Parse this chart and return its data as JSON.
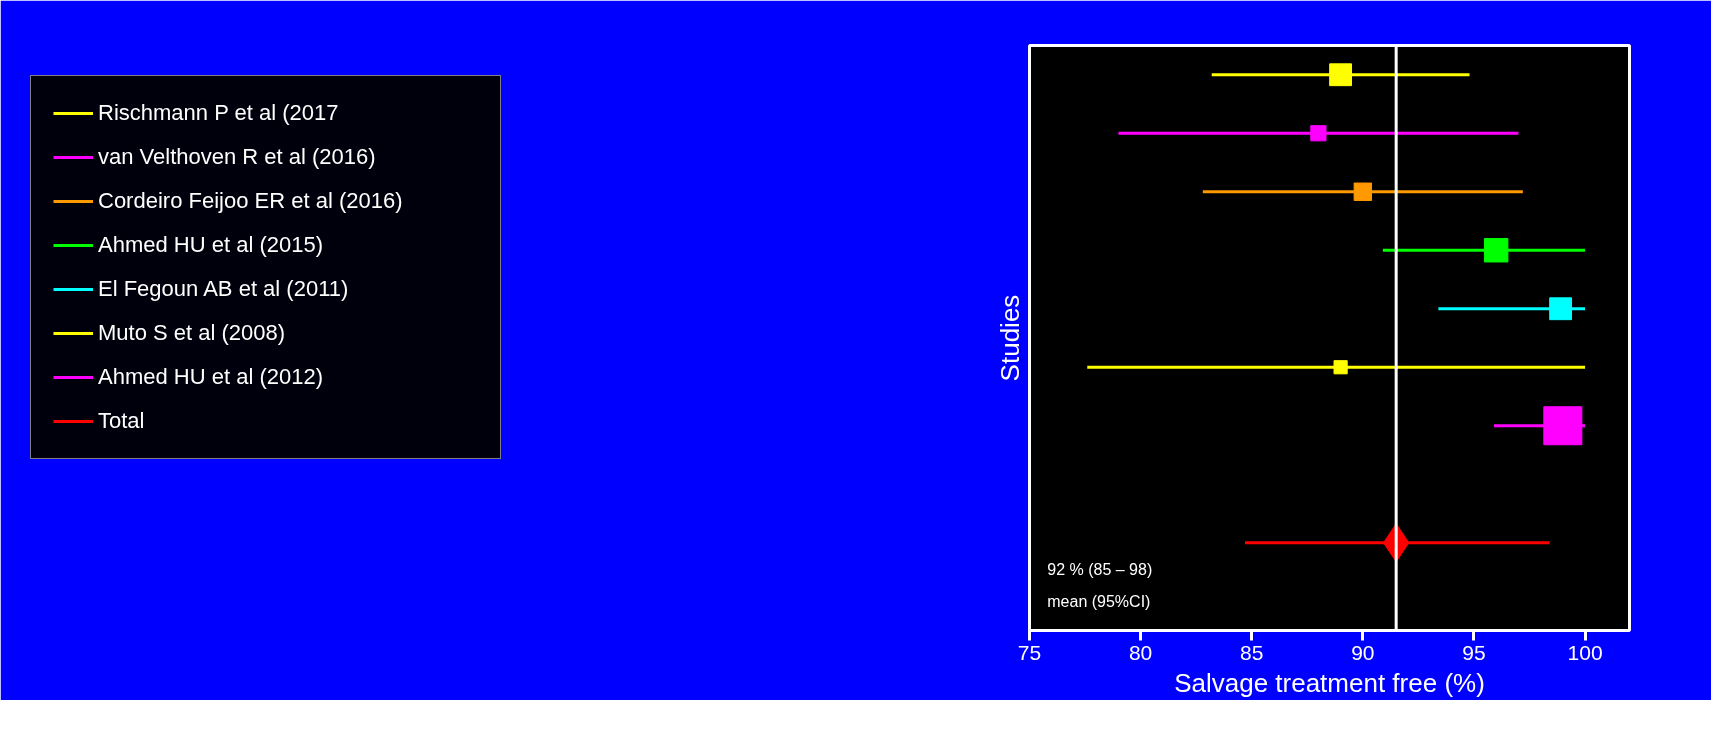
{
  "chart_data": {
    "type": "bubble",
    "orientation": "horizontal",
    "xlabel": "Salvage treatment free (%)",
    "ylabel": "Studies",
    "categories": [
      null,
      null,
      null,
      null,
      null,
      null,
      null,
      null,
      null,
      null
    ],
    "xlim": [
      75,
      102
    ],
    "xticks": [
      75,
      80,
      85,
      90,
      95,
      100
    ],
    "tick_labels": "x",
    "grid": false,
    "legend": "left",
    "marker": "square",
    "series": [
      {
        "name": "Rischmann P et al (2017",
        "color": "#ffff00",
        "values": [
          89.0,
          null,
          null,
          null,
          null,
          null,
          null,
          null,
          null,
          null
        ],
        "errors": [
          [
            83.2,
            94.8
          ],
          null,
          null,
          null,
          null,
          null,
          null,
          null,
          null,
          null
        ],
        "sizes": [
          0.33,
          null,
          null,
          null,
          null,
          null,
          null,
          null,
          null,
          null
        ]
      },
      {
        "name": "van Velthoven R et al (2016)",
        "color": "#ff00ff",
        "values": [
          null,
          88.0,
          null,
          null,
          null,
          null,
          null,
          null,
          null,
          null
        ],
        "errors": [
          null,
          [
            79.0,
            97.0
          ],
          null,
          null,
          null,
          null,
          null,
          null,
          null,
          null
        ],
        "sizes": [
          null,
          0.16,
          null,
          null,
          null,
          null,
          null,
          null,
          null,
          null
        ]
      },
      {
        "name": "Cordeiro Feijoo ER et al (2016)",
        "color": "#ff9900",
        "values": [
          null,
          null,
          90.0,
          null,
          null,
          null,
          null,
          null,
          null,
          null
        ],
        "errors": [
          null,
          null,
          [
            82.8,
            97.2
          ],
          null,
          null,
          null,
          null,
          null,
          null,
          null
        ],
        "sizes": [
          null,
          null,
          0.21,
          null,
          null,
          null,
          null,
          null,
          null,
          null
        ]
      },
      {
        "name": "Ahmed HU et al (2015)",
        "color": "#00ff00",
        "values": [
          null,
          null,
          null,
          96.0,
          null,
          null,
          null,
          null,
          null,
          null
        ],
        "errors": [
          null,
          null,
          null,
          [
            90.9,
            100.0
          ],
          null,
          null,
          null,
          null,
          null,
          null
        ],
        "sizes": [
          null,
          null,
          null,
          0.38,
          null,
          null,
          null,
          null,
          null,
          null
        ]
      },
      {
        "name": "El Fegoun AB et al (2011)",
        "color": "#00ffff",
        "values": [
          null,
          null,
          null,
          null,
          98.9,
          null,
          null,
          null,
          null,
          null
        ],
        "errors": [
          null,
          null,
          null,
          null,
          [
            93.4,
            100.0
          ],
          null,
          null,
          null,
          null,
          null
        ],
        "sizes": [
          null,
          null,
          null,
          null,
          0.33,
          null,
          null,
          null,
          null,
          null
        ]
      },
      {
        "name": "Muto S et al (2008)",
        "color": "#ffff00",
        "values": [
          null,
          null,
          null,
          null,
          null,
          89.0,
          null,
          null,
          null,
          null
        ],
        "errors": [
          null,
          null,
          null,
          null,
          null,
          [
            77.6,
            100.0
          ],
          null,
          null,
          null,
          null
        ],
        "sizes": [
          null,
          null,
          null,
          null,
          null,
          0.12,
          null,
          null,
          null,
          null
        ]
      },
      {
        "name": "Ahmed HU et al (2012)",
        "color": "#ff00ff",
        "values": [
          null,
          null,
          null,
          null,
          null,
          null,
          99.0,
          null,
          null,
          null
        ],
        "errors": [
          null,
          null,
          null,
          null,
          null,
          null,
          [
            95.9,
            100.0
          ],
          null,
          null,
          null
        ],
        "sizes": [
          null,
          null,
          null,
          null,
          null,
          null,
          1.0,
          null,
          null,
          null
        ]
      },
      {
        "name": "Total",
        "color": "#ff0000",
        "marker": "diamond",
        "values": [
          null,
          null,
          null,
          null,
          null,
          null,
          null,
          null,
          91.5,
          null
        ],
        "errors": [
          null,
          null,
          null,
          null,
          null,
          null,
          null,
          null,
          [
            84.7,
            98.4
          ],
          null
        ]
      }
    ],
    "ref_lines": [
      {
        "axis": "x",
        "value": 91.5,
        "label": null,
        "color": "#ffffff"
      }
    ],
    "annotations": [
      "92 % (85 – 98)",
      "mean (95%CI)"
    ]
  }
}
